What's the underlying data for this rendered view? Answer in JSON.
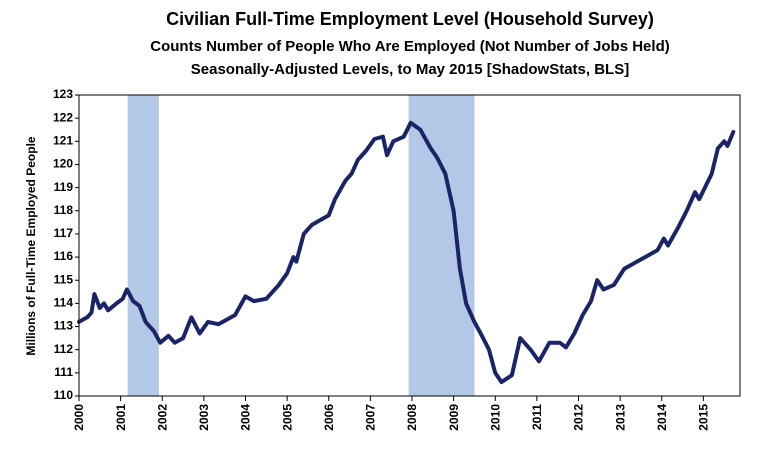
{
  "chart_data": {
    "type": "line",
    "title": "Civilian Full-Time Employment Level (Household Survey)",
    "subtitle": [
      "Counts Number of People Who Are Employed (Not Number of Jobs Held)",
      "Seasonally-Adjusted Levels, to May 2015 [ShadowStats, BLS]"
    ],
    "y_label": "Millions of Full-Time Employed People",
    "color": "#1b2466",
    "shade_color": "#b3c7e6",
    "shaded_ranges": [
      [
        2001.17,
        2001.92
      ],
      [
        2007.92,
        2009.5
      ]
    ],
    "x": [
      2000.0,
      2000.2,
      2000.3,
      2000.37,
      2000.5,
      2000.6,
      2000.7,
      2000.9,
      2001.05,
      2001.15,
      2001.3,
      2001.45,
      2001.6,
      2001.8,
      2001.95,
      2002.15,
      2002.3,
      2002.5,
      2002.7,
      2002.9,
      2003.1,
      2003.35,
      2003.55,
      2003.75,
      2004.0,
      2004.2,
      2004.5,
      2004.8,
      2005.0,
      2005.15,
      2005.22,
      2005.4,
      2005.6,
      2005.8,
      2006.0,
      2006.15,
      2006.4,
      2006.55,
      2006.7,
      2006.9,
      2007.1,
      2007.3,
      2007.4,
      2007.55,
      2007.8,
      2007.97,
      2008.2,
      2008.45,
      2008.6,
      2008.8,
      2009.0,
      2009.15,
      2009.3,
      2009.5,
      2009.65,
      2009.85,
      2010.0,
      2010.15,
      2010.4,
      2010.6,
      2010.85,
      2011.05,
      2011.3,
      2011.55,
      2011.7,
      2011.9,
      2012.1,
      2012.3,
      2012.45,
      2012.6,
      2012.85,
      2013.1,
      2013.4,
      2013.7,
      2013.9,
      2014.05,
      2014.15,
      2014.4,
      2014.6,
      2014.8,
      2014.9,
      2015.2,
      2015.35,
      2015.5,
      2015.58,
      2015.72
    ],
    "values": [
      113.2,
      113.4,
      113.6,
      114.4,
      113.8,
      114.0,
      113.7,
      114.0,
      114.2,
      114.6,
      114.1,
      113.9,
      113.2,
      112.8,
      112.3,
      112.6,
      112.3,
      112.5,
      113.4,
      112.7,
      113.2,
      113.1,
      113.3,
      113.5,
      114.3,
      114.1,
      114.2,
      114.8,
      115.3,
      116.0,
      115.8,
      117.0,
      117.4,
      117.6,
      117.8,
      118.5,
      119.3,
      119.6,
      120.2,
      120.6,
      121.1,
      121.2,
      120.4,
      121.0,
      121.2,
      121.8,
      121.5,
      120.7,
      120.3,
      119.6,
      118.0,
      115.5,
      114.0,
      113.2,
      112.7,
      112.0,
      111.0,
      110.6,
      110.9,
      112.5,
      112.0,
      111.5,
      112.3,
      112.3,
      112.1,
      112.7,
      113.5,
      114.1,
      115.0,
      114.6,
      114.8,
      115.5,
      115.8,
      116.1,
      116.3,
      116.8,
      116.5,
      117.3,
      118.0,
      118.8,
      118.5,
      119.6,
      120.7,
      121.0,
      120.8,
      121.4
    ],
    "xlim": [
      2000,
      2015.88
    ],
    "xticks": [
      2000,
      2001,
      2002,
      2003,
      2004,
      2005,
      2006,
      2007,
      2008,
      2009,
      2010,
      2011,
      2012,
      2013,
      2014,
      2015
    ],
    "ylim": [
      110,
      123
    ],
    "yticks": [
      110,
      111,
      112,
      113,
      114,
      115,
      116,
      117,
      118,
      119,
      120,
      121,
      122,
      123
    ],
    "grid": false
  }
}
